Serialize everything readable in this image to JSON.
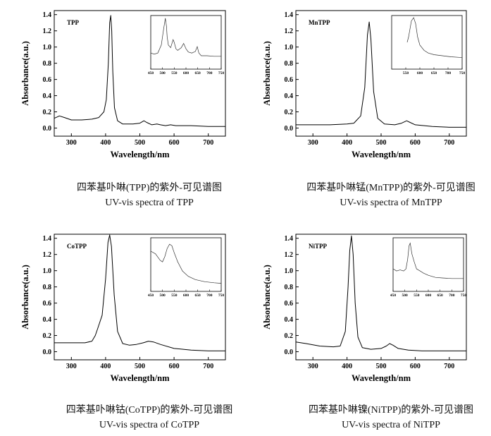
{
  "charts": [
    {
      "inset_label": "TPP",
      "caption_cn": "四苯基卟啉(TPP)的紫外-可见谱图",
      "caption_en": "UV-vis spectra of TPP"
    },
    {
      "inset_label": "MnTPP",
      "caption_cn": "四苯基卟啉锰(MnTPP)的紫外-可见谱图",
      "caption_en": "UV-vis spectra of MnTPP"
    },
    {
      "inset_label": "CoTPP",
      "caption_cn": "四苯基卟啉钴(CoTPP)的紫外-可见谱图",
      "caption_en": "UV-vis spectra of CoTPP"
    },
    {
      "inset_label": "NiTPP",
      "caption_cn": "四苯基卟啉镍(NiTPP)的紫外-可见谱图",
      "caption_en": "UV-vis spectra of NiTPP"
    }
  ],
  "chart_data": [
    {
      "type": "line",
      "xlabel": "Wavelength/nm",
      "ylabel": "Absorbance(a.u.)",
      "xlim": [
        250,
        750
      ],
      "ylim": [
        -0.1,
        1.45
      ],
      "xticks": [
        300,
        400,
        500,
        600,
        700
      ],
      "yticks": [
        0.0,
        0.2,
        0.4,
        0.6,
        0.8,
        1.0,
        1.2,
        1.4
      ],
      "x": [
        250,
        265,
        280,
        300,
        330,
        360,
        380,
        395,
        402,
        408,
        412,
        415,
        418,
        421,
        426,
        435,
        450,
        480,
        500,
        512,
        520,
        535,
        550,
        560,
        575,
        590,
        605,
        620,
        650,
        700,
        750
      ],
      "values": [
        0.12,
        0.15,
        0.13,
        0.1,
        0.1,
        0.11,
        0.13,
        0.2,
        0.35,
        0.8,
        1.3,
        1.39,
        1.2,
        0.7,
        0.25,
        0.09,
        0.05,
        0.05,
        0.06,
        0.09,
        0.07,
        0.04,
        0.05,
        0.04,
        0.03,
        0.04,
        0.03,
        0.03,
        0.03,
        0.02,
        0.02
      ],
      "inset": {
        "xlim": [
          450,
          750
        ],
        "xticks": [
          450,
          500,
          550,
          600,
          650,
          700,
          750
        ],
        "x": [
          450,
          465,
          480,
          495,
          505,
          512,
          517,
          520,
          525,
          535,
          545,
          550,
          557,
          565,
          580,
          590,
          600,
          610,
          625,
          640,
          648,
          655,
          665,
          690,
          720,
          750
        ],
        "values": [
          0.3,
          0.28,
          0.3,
          0.45,
          0.75,
          0.95,
          0.8,
          0.6,
          0.45,
          0.4,
          0.55,
          0.5,
          0.38,
          0.35,
          0.4,
          0.48,
          0.38,
          0.32,
          0.3,
          0.33,
          0.42,
          0.3,
          0.25,
          0.25,
          0.24,
          0.24
        ],
        "ymax": 1.0
      }
    },
    {
      "type": "line",
      "xlabel": "Wavelength/nm",
      "ylabel": "Absorbance(a.u.)",
      "xlim": [
        250,
        750
      ],
      "ylim": [
        -0.1,
        1.45
      ],
      "xticks": [
        300,
        400,
        500,
        600,
        700
      ],
      "yticks": [
        0.0,
        0.2,
        0.4,
        0.6,
        0.8,
        1.0,
        1.2,
        1.4
      ],
      "x": [
        250,
        300,
        350,
        400,
        420,
        440,
        452,
        460,
        465,
        470,
        478,
        490,
        510,
        540,
        560,
        575,
        585,
        600,
        650,
        700,
        750
      ],
      "values": [
        0.04,
        0.04,
        0.04,
        0.05,
        0.06,
        0.15,
        0.5,
        1.15,
        1.31,
        1.1,
        0.45,
        0.12,
        0.05,
        0.04,
        0.06,
        0.09,
        0.07,
        0.04,
        0.02,
        0.01,
        0.01
      ],
      "inset": {
        "xlim": [
          500,
          750
        ],
        "xticks": [
          550,
          600,
          650,
          700,
          750
        ],
        "x": [
          555,
          560,
          565,
          570,
          578,
          585,
          592,
          600,
          615,
          630,
          650,
          680,
          710,
          740,
          750
        ],
        "values": [
          0.5,
          0.6,
          0.75,
          0.9,
          0.96,
          0.85,
          0.6,
          0.45,
          0.35,
          0.3,
          0.27,
          0.25,
          0.23,
          0.22,
          0.22
        ],
        "ymax": 1.0
      }
    },
    {
      "type": "line",
      "xlabel": "Wavelength/nm",
      "ylabel": "Absorbance(a.u.)",
      "xlim": [
        250,
        750
      ],
      "ylim": [
        -0.1,
        1.45
      ],
      "xticks": [
        300,
        400,
        500,
        600,
        700
      ],
      "yticks": [
        0.0,
        0.2,
        0.4,
        0.6,
        0.8,
        1.0,
        1.2,
        1.4
      ],
      "x": [
        250,
        300,
        340,
        360,
        370,
        378,
        390,
        400,
        407,
        412,
        417,
        425,
        435,
        450,
        470,
        490,
        510,
        525,
        540,
        560,
        600,
        650,
        700,
        750
      ],
      "values": [
        0.11,
        0.11,
        0.11,
        0.13,
        0.2,
        0.3,
        0.45,
        0.9,
        1.35,
        1.44,
        1.3,
        0.7,
        0.25,
        0.1,
        0.08,
        0.09,
        0.11,
        0.13,
        0.12,
        0.09,
        0.04,
        0.02,
        0.01,
        0.01
      ],
      "inset": {
        "xlim": [
          450,
          750
        ],
        "xticks": [
          450,
          500,
          550,
          600,
          650,
          700,
          750
        ],
        "x": [
          450,
          470,
          490,
          500,
          510,
          520,
          530,
          540,
          550,
          565,
          585,
          610,
          640,
          680,
          720,
          750
        ],
        "values": [
          0.75,
          0.7,
          0.58,
          0.55,
          0.65,
          0.8,
          0.88,
          0.85,
          0.72,
          0.55,
          0.38,
          0.28,
          0.22,
          0.18,
          0.16,
          0.15
        ],
        "ymax": 1.0
      }
    },
    {
      "type": "line",
      "xlabel": "Wavelength/nm",
      "ylabel": "Absorbance(a.u.)",
      "xlim": [
        250,
        750
      ],
      "ylim": [
        -0.1,
        1.45
      ],
      "xticks": [
        300,
        400,
        500,
        600,
        700
      ],
      "yticks": [
        0.0,
        0.2,
        0.4,
        0.6,
        0.8,
        1.0,
        1.2,
        1.4
      ],
      "x": [
        250,
        280,
        320,
        360,
        380,
        395,
        403,
        408,
        413,
        418,
        424,
        432,
        445,
        470,
        500,
        515,
        525,
        535,
        550,
        580,
        620,
        680,
        750
      ],
      "values": [
        0.12,
        0.1,
        0.07,
        0.06,
        0.07,
        0.25,
        0.8,
        1.25,
        1.43,
        1.2,
        0.6,
        0.18,
        0.05,
        0.03,
        0.04,
        0.07,
        0.1,
        0.08,
        0.04,
        0.02,
        0.01,
        0.01,
        0.01
      ],
      "inset": {
        "xlim": [
          450,
          750
        ],
        "xticks": [
          450,
          500,
          550,
          600,
          650,
          700,
          750
        ],
        "x": [
          450,
          465,
          480,
          495,
          505,
          512,
          518,
          523,
          530,
          540,
          550,
          565,
          580,
          600,
          630,
          660,
          700,
          750
        ],
        "values": [
          0.42,
          0.38,
          0.4,
          0.38,
          0.42,
          0.6,
          0.85,
          0.9,
          0.7,
          0.55,
          0.42,
          0.38,
          0.34,
          0.3,
          0.26,
          0.25,
          0.24,
          0.24
        ],
        "ymax": 1.0
      }
    }
  ]
}
